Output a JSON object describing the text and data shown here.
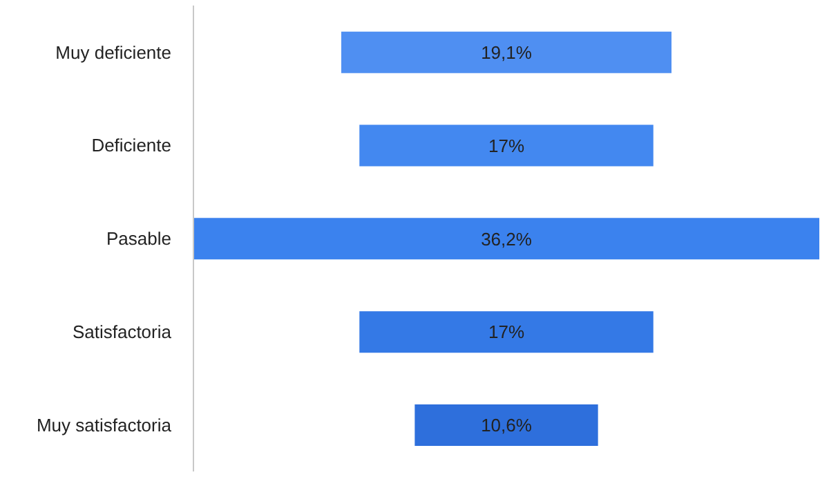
{
  "chart_data": {
    "type": "other",
    "categories": [
      "Muy deficiente",
      "Deficiente",
      "Pasable",
      "Satisfactoria",
      "Muy satisfactoria"
    ],
    "values": [
      19.1,
      17,
      36.2,
      17,
      10.6
    ],
    "value_labels": [
      "19,1%",
      "17%",
      "36,2%",
      "17%",
      "10,6%"
    ],
    "colors": [
      "#4f8ff2",
      "#4388f0",
      "#3b82ee",
      "#3479e6",
      "#2e6fdc"
    ]
  }
}
